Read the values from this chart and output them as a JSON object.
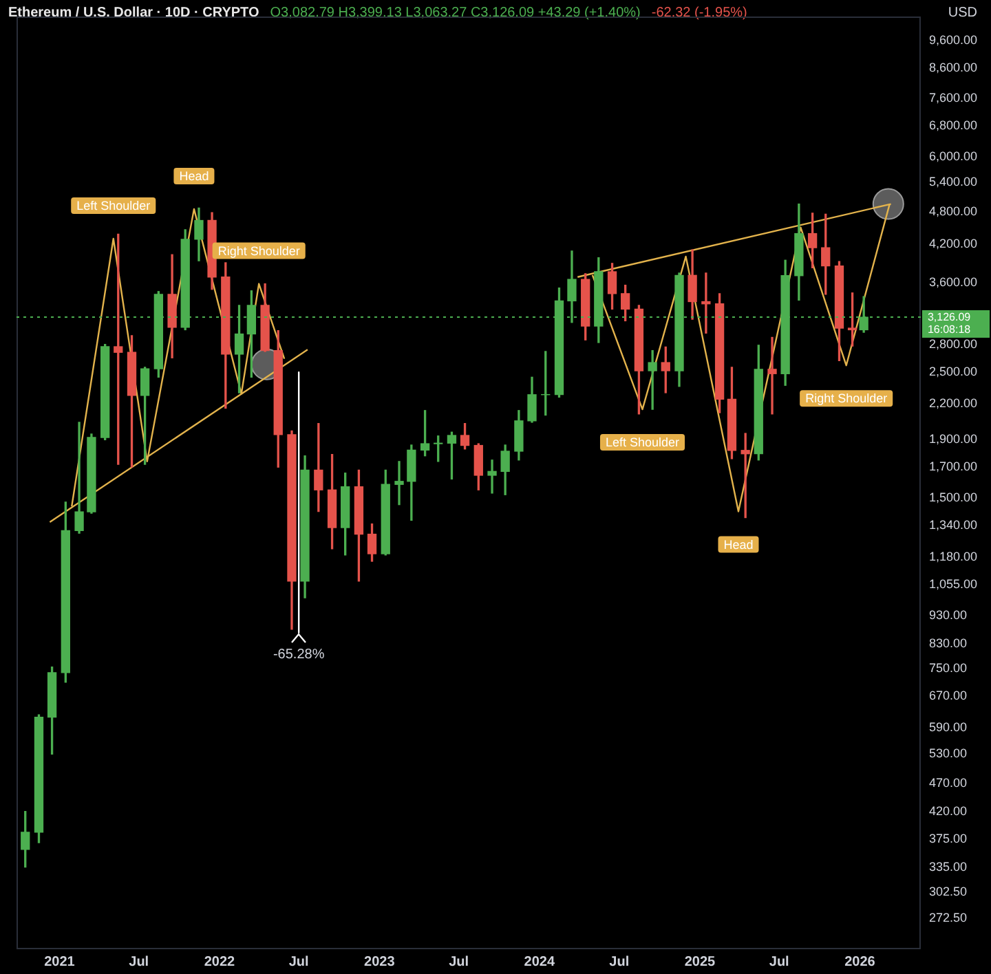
{
  "chart_data": {
    "type": "candlestick",
    "title": "Ethereum / U.S. Dollar · 10D · CRYPTO",
    "subtitle": "O3,082.79 H3,399.13 L3,063.27 C3,126.09 +43.29 (+1.40%)",
    "ylabel": "USD",
    "annotations": [
      "-62.32 (-1.95%)",
      {
        "text": "Left Shoulder",
        "x": "2021-05-04",
        "y": 4300
      },
      {
        "text": "Head",
        "x": "2021-11-04",
        "y": 4850
      },
      {
        "text": "Right Shoulder",
        "x": "2022-04-01",
        "y": 3580
      },
      {
        "text": "Left Shoulder",
        "x": "2024-08-23",
        "y": 2150
      },
      {
        "text": "Head",
        "x": "2025-03-30",
        "y": 1420
      },
      {
        "text": "Right Shoulder",
        "x": "2025-12-01",
        "y": 2570
      },
      {
        "text": "-65.28%",
        "x": "2022-07-01",
        "y": 868
      }
    ],
    "x": [
      "2020-10-15",
      "2020-11-15",
      "2020-12-15",
      "2021-01-15",
      "2021-02-15",
      "2021-03-15",
      "2021-04-15",
      "2021-05-15",
      "2021-06-15",
      "2021-07-15",
      "2021-08-15",
      "2021-09-15",
      "2021-10-15",
      "2021-11-15",
      "2021-12-15",
      "2022-01-15",
      "2022-02-15",
      "2022-03-15",
      "2022-04-15",
      "2022-05-15",
      "2022-06-15",
      "2022-07-15",
      "2022-08-15",
      "2022-09-15",
      "2022-10-15",
      "2022-11-15",
      "2022-12-15",
      "2023-01-15",
      "2023-02-15",
      "2023-03-15",
      "2023-04-15",
      "2023-05-15",
      "2023-06-15",
      "2023-07-15",
      "2023-08-15",
      "2023-09-15",
      "2023-10-15",
      "2023-11-15",
      "2023-12-15",
      "2024-01-15",
      "2024-02-15",
      "2024-03-15",
      "2024-04-15",
      "2024-05-15",
      "2024-06-15",
      "2024-07-15",
      "2024-08-15",
      "2024-09-15",
      "2024-10-15",
      "2024-11-15",
      "2024-12-15",
      "2025-01-15",
      "2025-02-15",
      "2025-03-15",
      "2025-04-15",
      "2025-05-15",
      "2025-06-15",
      "2025-07-15",
      "2025-08-15",
      "2025-09-15",
      "2025-10-15",
      "2025-11-15",
      "2025-12-15",
      "2026-01-10"
    ],
    "ohlc": [
      [
        360,
        420,
        335,
        386
      ],
      [
        386,
        622,
        370,
        616
      ],
      [
        616,
        755,
        530,
        738
      ],
      [
        738,
        1475,
        710,
        1314
      ],
      [
        1314,
        2040,
        1300,
        1418
      ],
      [
        1418,
        1945,
        1410,
        1918
      ],
      [
        1918,
        2800,
        1900,
        2773
      ],
      [
        2773,
        4380,
        1720,
        2710
      ],
      [
        2710,
        2900,
        1700,
        2275
      ],
      [
        2275,
        2550,
        1720,
        2535
      ],
      [
        2535,
        3470,
        2450,
        3430
      ],
      [
        3430,
        4030,
        2650,
        3000
      ],
      [
        3000,
        4460,
        2970,
        4290
      ],
      [
        4290,
        4870,
        3930,
        4630
      ],
      [
        4630,
        4780,
        3500,
        3680
      ],
      [
        3680,
        3900,
        2160,
        2690
      ],
      [
        2690,
        3280,
        2300,
        2920
      ],
      [
        2920,
        3480,
        2450,
        3280
      ],
      [
        3280,
        3580,
        2720,
        2730
      ],
      [
        2730,
        2960,
        1700,
        1940
      ],
      [
        1940,
        1970,
        880,
        1070
      ],
      [
        1070,
        1780,
        1000,
        1680
      ],
      [
        1680,
        2030,
        1420,
        1550
      ],
      [
        1550,
        1790,
        1220,
        1330
      ],
      [
        1330,
        1660,
        1190,
        1570
      ],
      [
        1570,
        1680,
        1070,
        1295
      ],
      [
        1295,
        1350,
        1160,
        1196
      ],
      [
        1196,
        1680,
        1190,
        1585
      ],
      [
        1585,
        1740,
        1460,
        1605
      ],
      [
        1605,
        1860,
        1370,
        1822
      ],
      [
        1822,
        2140,
        1780,
        1870
      ],
      [
        1870,
        1930,
        1740,
        1874
      ],
      [
        1874,
        1960,
        1620,
        1934
      ],
      [
        1934,
        2030,
        1830,
        1857
      ],
      [
        1857,
        1870,
        1550,
        1645
      ],
      [
        1645,
        1750,
        1530,
        1671
      ],
      [
        1671,
        1860,
        1520,
        1814
      ],
      [
        1814,
        2140,
        1750,
        2052
      ],
      [
        2052,
        2450,
        2040,
        2282
      ],
      [
        2282,
        2720,
        2100,
        2283
      ],
      [
        2283,
        3520,
        2260,
        3340
      ],
      [
        3340,
        4090,
        3060,
        3645
      ],
      [
        3645,
        3730,
        2850,
        3015
      ],
      [
        3015,
        3980,
        2820,
        3760
      ],
      [
        3760,
        3890,
        3230,
        3440
      ],
      [
        3440,
        3560,
        3080,
        3230
      ],
      [
        3230,
        3280,
        2110,
        2515
      ],
      [
        2515,
        2730,
        2150,
        2600
      ],
      [
        2600,
        2770,
        2300,
        2515
      ],
      [
        2515,
        3740,
        2360,
        3705
      ],
      [
        3705,
        4110,
        3100,
        3330
      ],
      [
        3330,
        3740,
        2930,
        3300
      ],
      [
        3300,
        3440,
        2120,
        2240
      ],
      [
        2240,
        2550,
        1760,
        1820
      ],
      [
        1820,
        1950,
        1385,
        1795
      ],
      [
        1795,
        2790,
        1750,
        2530
      ],
      [
        2530,
        2880,
        2110,
        2485
      ],
      [
        2485,
        3940,
        2370,
        3700
      ],
      [
        3700,
        4950,
        3350,
        4390
      ],
      [
        4390,
        4770,
        3820,
        4145
      ],
      [
        4145,
        4750,
        3430,
        3850
      ],
      [
        3850,
        3920,
        2620,
        2990
      ],
      [
        2990,
        3450,
        2780,
        2970
      ],
      [
        2970,
        3399.13,
        2940,
        3126.09
      ]
    ],
    "colors": [
      "#4caf50",
      "#4caf50",
      "#4caf50",
      "#4caf50",
      "#4caf50",
      "#4caf50",
      "#4caf50",
      "#e5534b",
      "#e5534b",
      "#4caf50",
      "#4caf50",
      "#e5534b",
      "#4caf50",
      "#4caf50",
      "#e5534b",
      "#e5534b",
      "#4caf50",
      "#4caf50",
      "#e5534b",
      "#e5534b",
      "#e5534b",
      "#4caf50",
      "#e5534b",
      "#e5534b",
      "#4caf50",
      "#e5534b",
      "#e5534b",
      "#4caf50",
      "#4caf50",
      "#4caf50",
      "#4caf50",
      "#4caf50",
      "#4caf50",
      "#e5534b",
      "#e5534b",
      "#4caf50",
      "#4caf50",
      "#4caf50",
      "#4caf50",
      "#4caf50",
      "#4caf50",
      "#4caf50",
      "#e5534b",
      "#4caf50",
      "#e5534b",
      "#e5534b",
      "#e5534b",
      "#4caf50",
      "#e5534b",
      "#4caf50",
      "#e5534b",
      "#e5534b",
      "#e5534b",
      "#e5534b",
      "#e5534b",
      "#4caf50",
      "#e5534b",
      "#4caf50",
      "#4caf50",
      "#e5534b",
      "#e5534b",
      "#e5534b",
      "#e5534b",
      "#4caf50"
    ],
    "series": [
      {
        "type": "line",
        "color": "#e3b34c",
        "x": [
          "2020-12-10",
          "2022-07-21"
        ],
        "values": [
          1360,
          2740
        ]
      },
      {
        "type": "line",
        "color": "#e3b34c",
        "x": [
          "2021-01-29",
          "2021-05-04",
          "2021-07-20",
          "2021-11-04",
          "2022-02-20",
          "2022-04-01",
          "2022-05-29"
        ],
        "values": [
          1450,
          4300,
          1740,
          4850,
          2290,
          3580,
          2640
        ]
      },
      {
        "type": "line",
        "color": "#e3b34c",
        "x": [
          "2024-03-28",
          "2026-03-13"
        ],
        "values": [
          3680,
          4950
        ]
      },
      {
        "type": "line",
        "color": "#e3b34c",
        "x": [
          "2024-05-01",
          "2024-08-23",
          "2024-11-30",
          "2025-03-30",
          "2025-08-19",
          "2025-12-01",
          "2026-03-10"
        ],
        "values": [
          3710,
          2150,
          4000,
          1420,
          4500,
          2570,
          4950
        ]
      },
      {
        "type": "line",
        "color": "#ffffff",
        "x": [
          "2022-07-01",
          "2022-07-01"
        ],
        "values": [
          2500,
          868
        ]
      },
      {
        "type": "scatter",
        "color": "#9a9a9a",
        "x": [
          "2022-04-19",
          "2026-03-07"
        ],
        "values": [
          2580,
          4950
        ]
      }
    ],
    "ref_lines": [
      {
        "axis": "y",
        "value": 3126.09,
        "label": "3,126.09\n16:08:18",
        "color": "#4caf50",
        "line_style": "dotted"
      }
    ],
    "log": true,
    "grid": false,
    "legend": false,
    "xlim": [
      "2020-09-25",
      "2026-05-20"
    ],
    "xticks": [
      {
        "value": "2021-01-01",
        "label": "2021"
      },
      {
        "value": "2021-07-01",
        "label": "Jul"
      },
      {
        "value": "2022-01-01",
        "label": "2022"
      },
      {
        "value": "2022-07-01",
        "label": "Jul"
      },
      {
        "value": "2023-01-01",
        "label": "2023"
      },
      {
        "value": "2023-07-01",
        "label": "Jul"
      },
      {
        "value": "2024-01-01",
        "label": "2024"
      },
      {
        "value": "2024-07-01",
        "label": "Jul"
      },
      {
        "value": "2025-01-01",
        "label": "2025"
      },
      {
        "value": "2025-07-01",
        "label": "Jul"
      },
      {
        "value": "2026-01-01",
        "label": "2026"
      }
    ],
    "ylim": [
      240,
      10600
    ],
    "yticks": [
      {
        "value": 272.5,
        "label": "272.50"
      },
      {
        "value": 302.5,
        "label": "302.50"
      },
      {
        "value": 335,
        "label": "335.00"
      },
      {
        "value": 375,
        "label": "375.00"
      },
      {
        "value": 420,
        "label": "420.00"
      },
      {
        "value": 470,
        "label": "470.00"
      },
      {
        "value": 530,
        "label": "530.00"
      },
      {
        "value": 590,
        "label": "590.00"
      },
      {
        "value": 670,
        "label": "670.00"
      },
      {
        "value": 750,
        "label": "750.00"
      },
      {
        "value": 830,
        "label": "830.00"
      },
      {
        "value": 930,
        "label": "930.00"
      },
      {
        "value": 1055,
        "label": "1,055.00"
      },
      {
        "value": 1180,
        "label": "1,180.00"
      },
      {
        "value": 1340,
        "label": "1,340.00"
      },
      {
        "value": 1500,
        "label": "1,500.00"
      },
      {
        "value": 1700,
        "label": "1,700.00"
      },
      {
        "value": 1900,
        "label": "1,900.00"
      },
      {
        "value": 2200,
        "label": "2,200.00"
      },
      {
        "value": 2500,
        "label": "2,500.00"
      },
      {
        "value": 2800,
        "label": "2,800.00"
      },
      {
        "value": 3600,
        "label": "3,600.00"
      },
      {
        "value": 4200,
        "label": "4,200.00"
      },
      {
        "value": 4800,
        "label": "4,800.00"
      },
      {
        "value": 5400,
        "label": "5,400.00"
      },
      {
        "value": 6000,
        "label": "6,000.00"
      },
      {
        "value": 6800,
        "label": "6,800.00"
      },
      {
        "value": 7600,
        "label": "7,600.00"
      },
      {
        "value": 8600,
        "label": "8,600.00"
      },
      {
        "value": 9600,
        "label": "9,600.00"
      }
    ]
  }
}
